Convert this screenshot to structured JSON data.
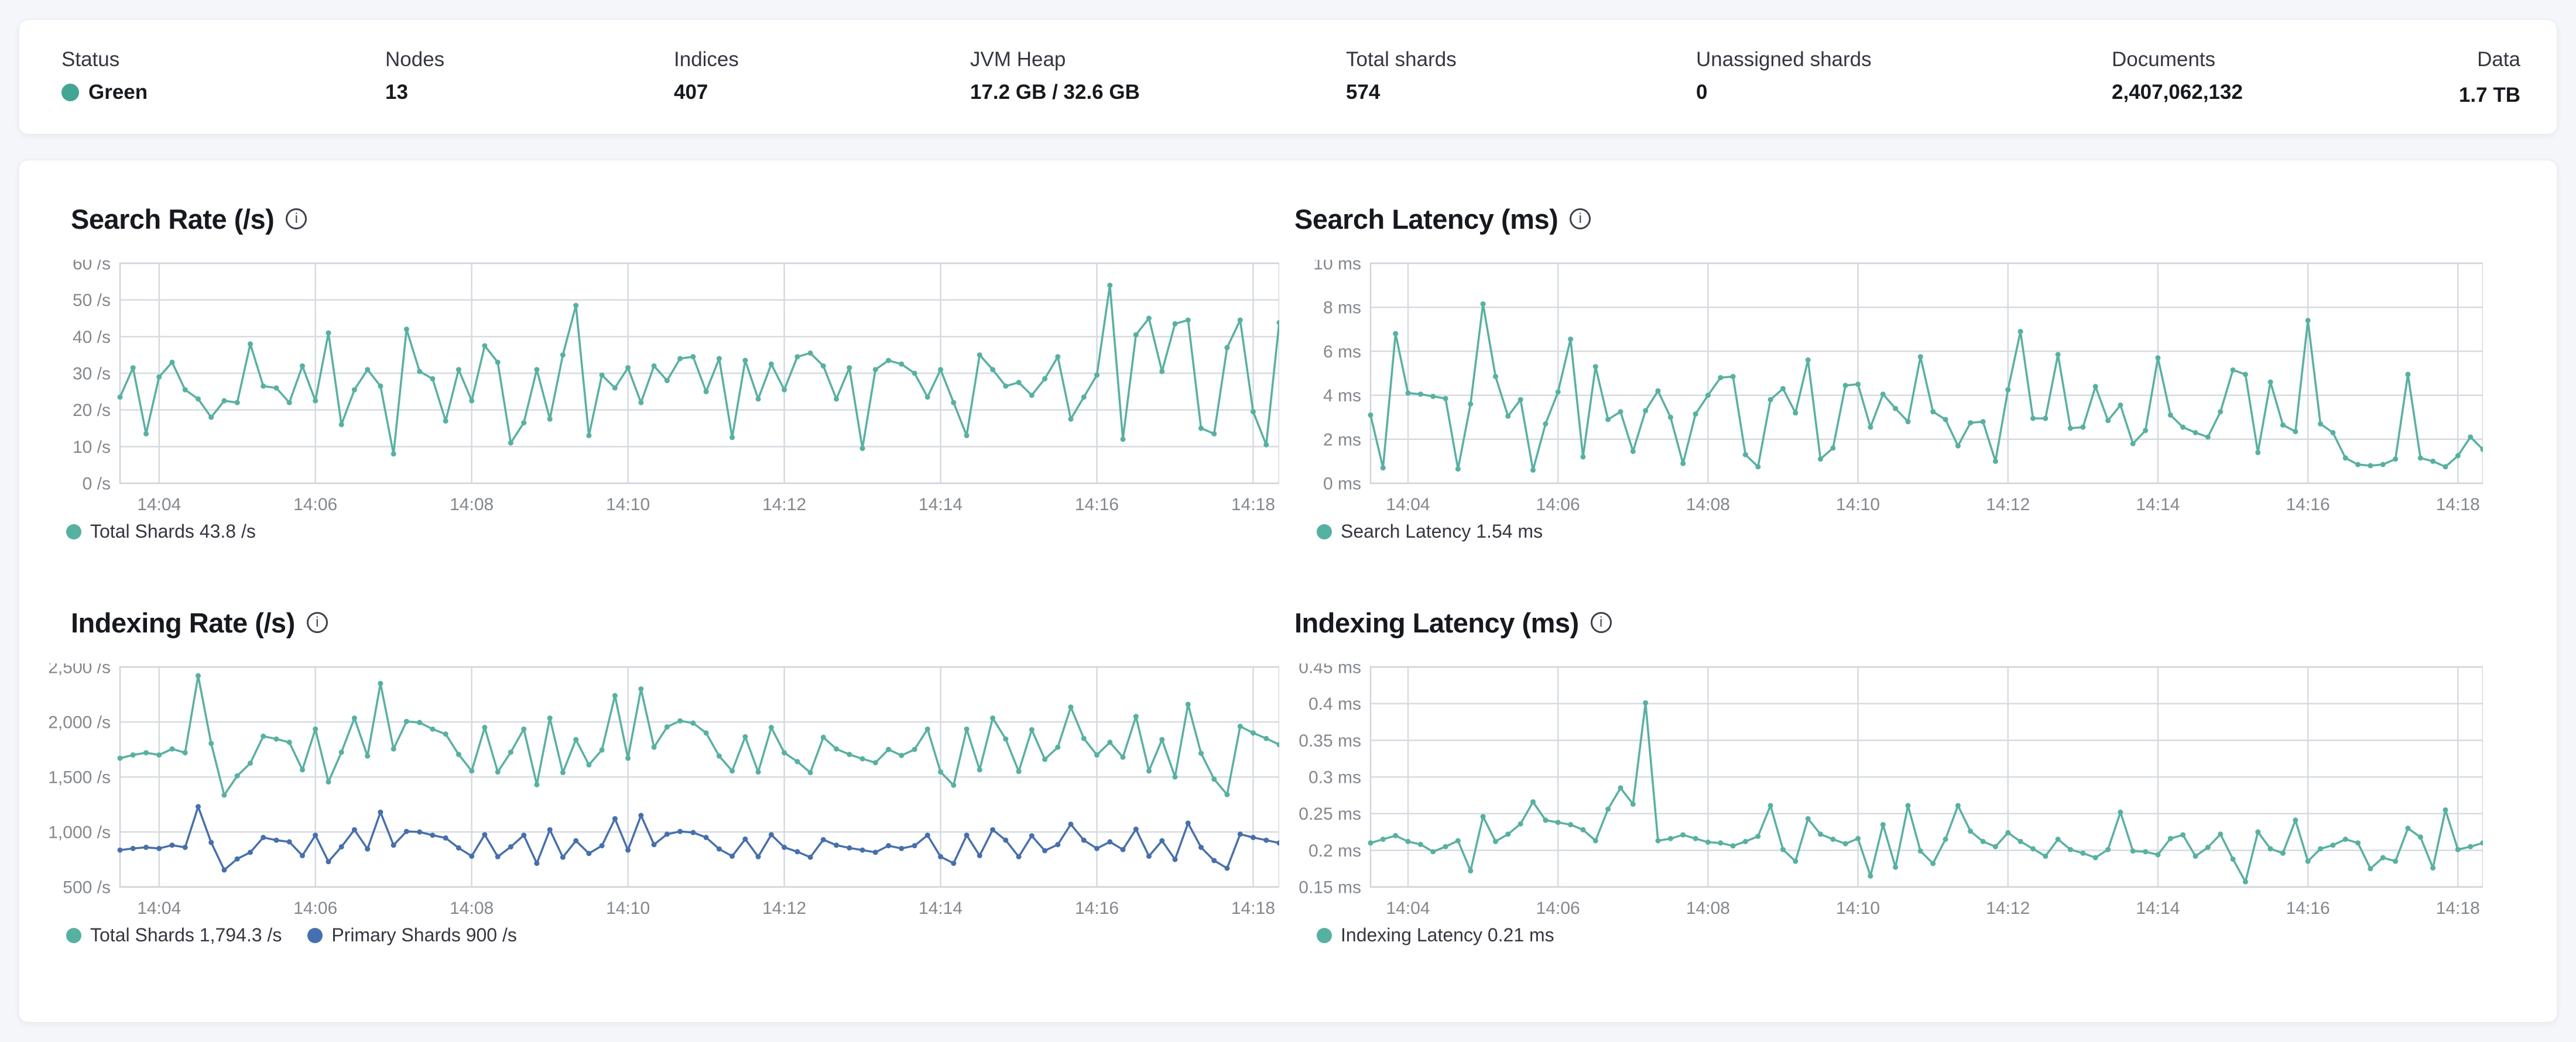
{
  "topbar": {
    "metrics": [
      {
        "label": "Status",
        "value": "Green"
      },
      {
        "label": "Nodes",
        "value": "13"
      },
      {
        "label": "Indices",
        "value": "407"
      },
      {
        "label": "JVM Heap",
        "value": "17.2 GB / 32.6 GB"
      },
      {
        "label": "Total shards",
        "value": "574"
      },
      {
        "label": "Unassigned shards",
        "value": "0"
      },
      {
        "label": "Documents",
        "value": "2,407,062,132"
      },
      {
        "label": "Data",
        "value": "1.7 TB"
      }
    ],
    "status_color": "#43a594"
  },
  "colors": {
    "teal": "#54b2a1",
    "blue": "#4470b2",
    "grid": "#d6dbe2",
    "axis_text": "#83888f"
  },
  "chart_data": [
    {
      "type": "line",
      "title": "Search Rate (/s)",
      "y_min": 0,
      "y_max": 60,
      "y_tick_labels": [
        "60 /s",
        "50 /s",
        "40 /s",
        "30 /s",
        "20 /s",
        "10 /s",
        "0 /s"
      ],
      "y_tick_values": [
        60,
        50,
        40,
        30,
        20,
        10,
        0
      ],
      "x_tick_labels": [
        "14:04",
        "14:06",
        "14:08",
        "14:10",
        "14:12",
        "14:14",
        "14:16",
        "14:18"
      ],
      "x_tick_indices": [
        3,
        15,
        27,
        39,
        51,
        63,
        75,
        87
      ],
      "series": [
        {
          "name": "Total Shards",
          "color": "#54b2a1",
          "values": [
            23.5,
            31.5,
            13.5,
            29,
            33,
            25.5,
            23,
            18,
            22.5,
            22,
            38,
            26.5,
            26,
            22,
            32,
            22.5,
            41,
            16,
            25.5,
            31,
            26.5,
            8,
            42,
            30.5,
            28.5,
            17,
            31,
            22.5,
            37.5,
            33,
            11,
            16.5,
            31,
            17.5,
            35,
            48.5,
            13,
            29.5,
            26,
            31.5,
            22,
            32,
            28,
            34,
            34.5,
            25,
            34,
            12.5,
            33.5,
            23,
            32.5,
            25.5,
            34.5,
            35.5,
            32,
            23,
            31.5,
            9.5,
            31,
            33.5,
            32.5,
            30,
            23.5,
            31,
            22,
            13,
            35,
            31,
            26.5,
            27.5,
            24,
            28.5,
            34.5,
            17.5,
            23.5,
            29.5,
            54,
            12,
            40.5,
            45,
            30.5,
            43.5,
            44.5,
            15,
            13.5,
            37,
            44.5,
            19.5,
            10.5,
            43.8
          ]
        }
      ],
      "legend": [
        {
          "label": "Total Shards 43.8 /s",
          "color": "#54b2a1"
        }
      ]
    },
    {
      "type": "line",
      "title": "Search Latency (ms)",
      "y_min": 0,
      "y_max": 10,
      "y_tick_labels": [
        "10 ms",
        "8 ms",
        "6 ms",
        "4 ms",
        "2 ms",
        "0 ms"
      ],
      "y_tick_values": [
        10,
        8,
        6,
        4,
        2,
        0
      ],
      "x_tick_labels": [
        "14:04",
        "14:06",
        "14:08",
        "14:10",
        "14:12",
        "14:14",
        "14:16",
        "14:18"
      ],
      "x_tick_indices": [
        3,
        15,
        27,
        39,
        51,
        63,
        75,
        87
      ],
      "series": [
        {
          "name": "Search Latency",
          "color": "#54b2a1",
          "values": [
            3.1,
            0.7,
            6.8,
            4.1,
            4.05,
            3.95,
            3.85,
            0.65,
            3.6,
            8.15,
            4.85,
            3.05,
            3.8,
            0.6,
            2.7,
            4.15,
            6.55,
            1.2,
            5.3,
            2.9,
            3.25,
            1.45,
            3.3,
            4.2,
            3.0,
            0.9,
            3.15,
            4.0,
            4.8,
            4.85,
            1.3,
            0.75,
            3.8,
            4.3,
            3.2,
            5.6,
            1.1,
            1.6,
            4.45,
            4.5,
            2.55,
            4.05,
            3.4,
            2.8,
            5.75,
            3.25,
            2.9,
            1.7,
            2.75,
            2.8,
            1.0,
            4.25,
            6.9,
            2.95,
            2.95,
            5.85,
            2.5,
            2.55,
            4.4,
            2.85,
            3.55,
            1.8,
            2.4,
            5.7,
            3.1,
            2.55,
            2.3,
            2.1,
            3.25,
            5.15,
            4.95,
            1.4,
            4.6,
            2.65,
            2.35,
            7.4,
            2.7,
            2.3,
            1.15,
            0.85,
            0.8,
            0.85,
            1.1,
            4.95,
            1.15,
            1.0,
            0.75,
            1.25,
            2.1,
            1.54
          ]
        }
      ],
      "legend": [
        {
          "label": "Search Latency 1.54 ms",
          "color": "#54b2a1"
        }
      ]
    },
    {
      "type": "line",
      "title": "Indexing Rate (/s)",
      "y_min": 500,
      "y_max": 2500,
      "y_tick_labels": [
        "2,500 /s",
        "2,000 /s",
        "1,500 /s",
        "1,000 /s",
        "500 /s"
      ],
      "y_tick_values": [
        2500,
        2000,
        1500,
        1000,
        500
      ],
      "x_tick_labels": [
        "14:04",
        "14:06",
        "14:08",
        "14:10",
        "14:12",
        "14:14",
        "14:16",
        "14:18"
      ],
      "x_tick_indices": [
        3,
        15,
        27,
        39,
        51,
        63,
        75,
        87
      ],
      "series": [
        {
          "name": "Total Shards",
          "color": "#54b2a1",
          "values": [
            1670,
            1700,
            1720,
            1700,
            1755,
            1720,
            2420,
            1805,
            1335,
            1510,
            1625,
            1870,
            1845,
            1815,
            1565,
            1935,
            1455,
            1725,
            2035,
            1690,
            2350,
            1755,
            2005,
            1995,
            1935,
            1890,
            1705,
            1555,
            1950,
            1545,
            1725,
            1935,
            1430,
            2035,
            1540,
            1840,
            1610,
            1745,
            2240,
            1670,
            2300,
            1770,
            1955,
            2010,
            1990,
            1900,
            1690,
            1555,
            1865,
            1545,
            1950,
            1720,
            1640,
            1540,
            1860,
            1755,
            1705,
            1665,
            1630,
            1750,
            1695,
            1750,
            1935,
            1545,
            1425,
            1935,
            1565,
            2035,
            1845,
            1550,
            1930,
            1660,
            1770,
            2135,
            1850,
            1700,
            1815,
            1680,
            2050,
            1555,
            1840,
            1500,
            2160,
            1715,
            1480,
            1340,
            1960,
            1900,
            1850,
            1794.3
          ]
        },
        {
          "name": "Primary Shards",
          "color": "#4470b2",
          "values": [
            835,
            850,
            860,
            850,
            880,
            860,
            1230,
            905,
            655,
            755,
            815,
            950,
            925,
            910,
            785,
            970,
            730,
            865,
            1020,
            845,
            1180,
            880,
            1005,
            1000,
            970,
            945,
            855,
            780,
            975,
            775,
            865,
            970,
            715,
            1020,
            770,
            920,
            805,
            875,
            1120,
            835,
            1150,
            885,
            980,
            1005,
            995,
            950,
            845,
            780,
            935,
            775,
            975,
            860,
            820,
            770,
            930,
            880,
            855,
            835,
            815,
            875,
            850,
            875,
            970,
            775,
            715,
            970,
            785,
            1020,
            925,
            775,
            965,
            830,
            885,
            1070,
            925,
            850,
            910,
            840,
            1025,
            780,
            920,
            750,
            1080,
            860,
            740,
            670,
            980,
            950,
            925,
            900
          ]
        }
      ],
      "legend": [
        {
          "label": "Total Shards 1,794.3 /s",
          "color": "#54b2a1"
        },
        {
          "label": "Primary Shards 900 /s",
          "color": "#4470b2"
        }
      ]
    },
    {
      "type": "line",
      "title": "Indexing Latency (ms)",
      "y_min": 0.15,
      "y_max": 0.45,
      "y_tick_labels": [
        "0.45 ms",
        "0.4 ms",
        "0.35 ms",
        "0.3 ms",
        "0.25 ms",
        "0.2 ms",
        "0.15 ms"
      ],
      "y_tick_values": [
        0.45,
        0.4,
        0.35,
        0.3,
        0.25,
        0.2,
        0.15
      ],
      "x_tick_labels": [
        "14:04",
        "14:06",
        "14:08",
        "14:10",
        "14:12",
        "14:14",
        "14:16",
        "14:18"
      ],
      "x_tick_indices": [
        3,
        15,
        27,
        39,
        51,
        63,
        75,
        87
      ],
      "series": [
        {
          "name": "Indexing Latency",
          "color": "#54b2a1",
          "values": [
            0.21,
            0.215,
            0.22,
            0.212,
            0.208,
            0.198,
            0.205,
            0.213,
            0.172,
            0.246,
            0.212,
            0.222,
            0.236,
            0.266,
            0.241,
            0.238,
            0.235,
            0.228,
            0.213,
            0.256,
            0.285,
            0.263,
            0.401,
            0.213,
            0.216,
            0.221,
            0.216,
            0.211,
            0.21,
            0.206,
            0.212,
            0.219,
            0.261,
            0.201,
            0.185,
            0.243,
            0.222,
            0.215,
            0.209,
            0.216,
            0.165,
            0.235,
            0.177,
            0.261,
            0.199,
            0.182,
            0.215,
            0.261,
            0.226,
            0.212,
            0.205,
            0.224,
            0.212,
            0.202,
            0.192,
            0.215,
            0.201,
            0.196,
            0.19,
            0.201,
            0.252,
            0.199,
            0.198,
            0.194,
            0.216,
            0.221,
            0.192,
            0.204,
            0.222,
            0.188,
            0.157,
            0.225,
            0.202,
            0.196,
            0.241,
            0.185,
            0.202,
            0.207,
            0.215,
            0.21,
            0.175,
            0.19,
            0.185,
            0.23,
            0.218,
            0.176,
            0.255,
            0.201,
            0.205,
            0.21
          ]
        }
      ],
      "legend": [
        {
          "label": "Indexing Latency 0.21 ms",
          "color": "#54b2a1"
        }
      ]
    }
  ]
}
